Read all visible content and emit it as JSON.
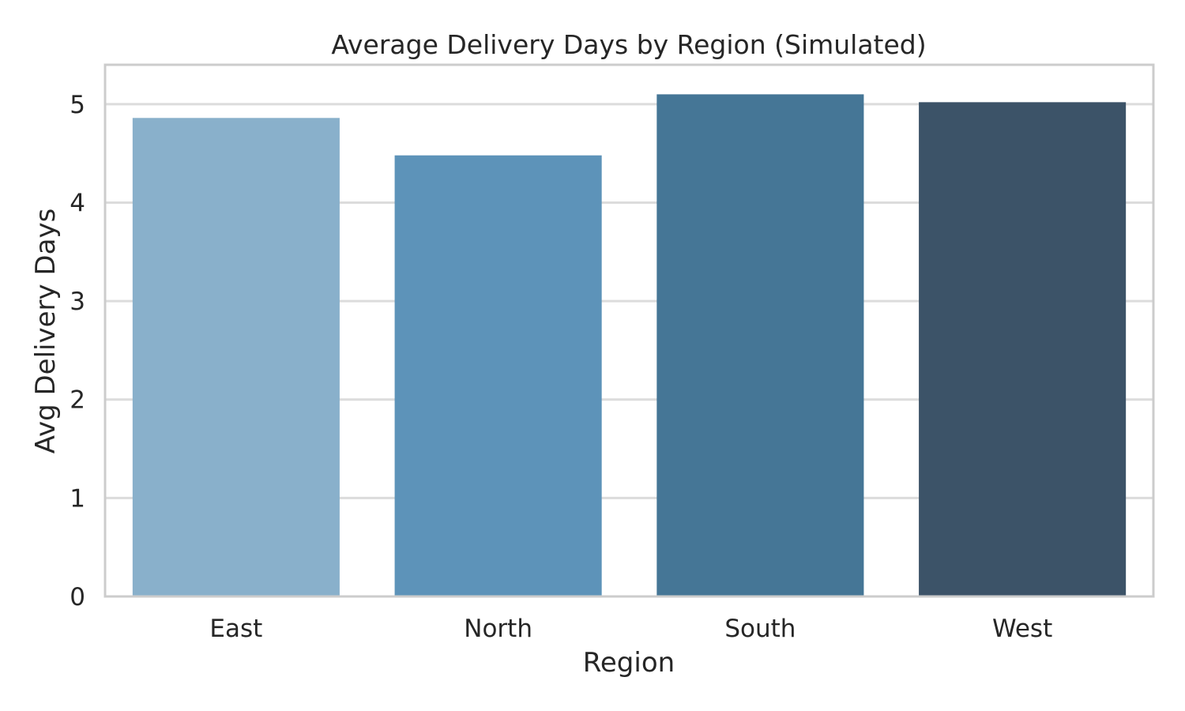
{
  "chart_data": {
    "type": "bar",
    "title": "Average Delivery Days by Region (Simulated)",
    "xlabel": "Region",
    "ylabel": "Avg Delivery Days",
    "categories": [
      "East",
      "North",
      "South",
      "West"
    ],
    "values": [
      4.86,
      4.48,
      5.1,
      5.02
    ],
    "colors": [
      "#89b0cb",
      "#5d93b9",
      "#457696",
      "#3c5368"
    ],
    "ylim": [
      0,
      5.4
    ],
    "yticks": [
      0,
      1,
      2,
      3,
      4,
      5
    ],
    "grid": true,
    "background": "#ffffff",
    "grid_color": "#dcdcdc",
    "frame_color": "#cccccc"
  }
}
